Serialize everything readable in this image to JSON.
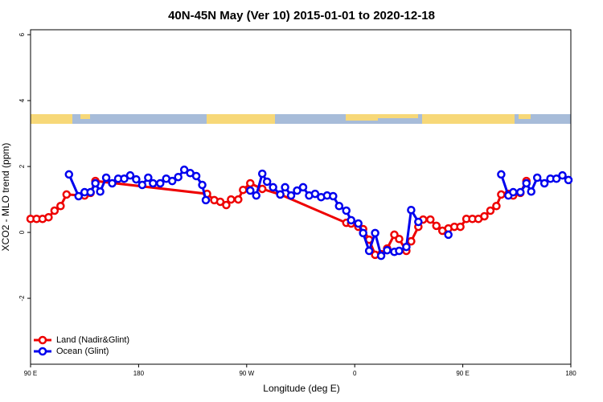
{
  "chart_data": {
    "type": "line",
    "title": "40N-45N May (Ver 10)   2015-01-01 to 2020-12-18",
    "xlabel": "Longitude (deg E)",
    "ylabel": "XCO2 - MLO trend (ppm)",
    "xlim": [
      90,
      540
    ],
    "ylim": [
      -4,
      6.15
    ],
    "xticks": [
      {
        "value": 90,
        "label": "90 E"
      },
      180,
      {
        "value": 270,
        "label": "90 W"
      },
      {
        "value": 360,
        "label": "0"
      },
      {
        "value": 450,
        "label": "90 E"
      },
      {
        "value": 540,
        "label": "180"
      }
    ],
    "yticks": [
      -2,
      0,
      2,
      4,
      6
    ],
    "legend": "bottom-left",
    "series": [
      {
        "name": "Land (Nadir&Glint)",
        "color": "#ee0000",
        "x": [
          90,
          95,
          100,
          105,
          110,
          115,
          120,
          135,
          140,
          144,
          237,
          243,
          248,
          253,
          257,
          263,
          267,
          273,
          283,
          298,
          353,
          357,
          363,
          367,
          372,
          377,
          382,
          387,
          393,
          397,
          403,
          407,
          413,
          417,
          423,
          428,
          433,
          438,
          443,
          448,
          453,
          458,
          463,
          468,
          473,
          478,
          482,
          488,
          492,
          498,
          503
        ],
        "values": [
          0.41,
          0.41,
          0.41,
          0.46,
          0.66,
          0.8,
          1.15,
          1.12,
          1.2,
          1.56,
          1.17,
          0.98,
          0.93,
          0.83,
          1.0,
          1.0,
          1.29,
          1.49,
          1.32,
          1.15,
          0.29,
          0.27,
          0.17,
          0.1,
          -0.22,
          -0.68,
          -0.66,
          -0.49,
          -0.07,
          -0.2,
          -0.56,
          -0.27,
          0.17,
          0.39,
          0.39,
          0.2,
          0.05,
          0.12,
          0.17,
          0.17,
          0.41,
          0.41,
          0.41,
          0.49,
          0.66,
          0.8,
          1.15,
          1.17,
          1.12,
          1.2,
          1.56
        ]
      },
      {
        "name": "Ocean (Glint)",
        "color": "#0000ee",
        "x": [
          122,
          130,
          135,
          140,
          144,
          148,
          153,
          158,
          163,
          168,
          173,
          178,
          183,
          188,
          192,
          198,
          203,
          208,
          213,
          218,
          223,
          228,
          233,
          236,
          null,
          273,
          278,
          283,
          287,
          292,
          298,
          302,
          307,
          312,
          317,
          322,
          327,
          332,
          337,
          342,
          347,
          353,
          357,
          363,
          367,
          372,
          377,
          382,
          387,
          393,
          397,
          403,
          407,
          413,
          null,
          438,
          null,
          482,
          488,
          492,
          498,
          503,
          507,
          512,
          518,
          523,
          528,
          533,
          538
        ],
        "values": [
          1.76,
          1.1,
          1.22,
          1.22,
          1.49,
          1.24,
          1.66,
          1.49,
          1.63,
          1.63,
          1.73,
          1.61,
          1.44,
          1.66,
          1.49,
          1.49,
          1.63,
          1.56,
          1.68,
          1.9,
          1.8,
          1.71,
          1.44,
          0.98,
          null,
          1.27,
          1.12,
          1.78,
          1.54,
          1.37,
          1.15,
          1.37,
          1.12,
          1.27,
          1.37,
          1.12,
          1.17,
          1.07,
          1.12,
          1.1,
          0.8,
          0.66,
          0.37,
          0.27,
          -0.02,
          -0.56,
          -0.02,
          -0.71,
          -0.54,
          -0.59,
          -0.56,
          -0.44,
          0.68,
          0.32,
          null,
          -0.07,
          null,
          1.76,
          1.12,
          1.22,
          1.22,
          1.49,
          1.24,
          1.66,
          1.49,
          1.63,
          1.63,
          1.73,
          1.59
        ]
      }
    ]
  }
}
